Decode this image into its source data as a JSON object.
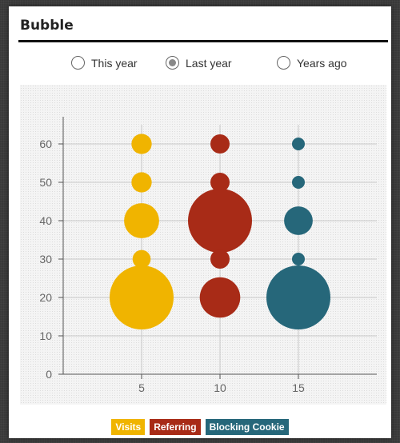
{
  "panel": {
    "title": "Bubble"
  },
  "radios": [
    {
      "label": "This year",
      "checked": false
    },
    {
      "label": "Last year",
      "checked": true
    },
    {
      "label": "Years ago",
      "checked": false
    }
  ],
  "legend": [
    {
      "name": "Visits",
      "color": "#f0b400"
    },
    {
      "name": "Referring",
      "color": "#a82b17"
    },
    {
      "name": "Blocking Cookie",
      "color": "#26677a"
    }
  ],
  "chart_data": {
    "type": "scatter",
    "title": "",
    "xlabel": "",
    "ylabel": "",
    "xlim": [
      0,
      20
    ],
    "ylim": [
      0,
      65
    ],
    "xticks": [
      5,
      10,
      15
    ],
    "yticks": [
      0,
      10,
      20,
      30,
      40,
      50,
      60
    ],
    "grid": true,
    "legend_position": "bottom",
    "series": [
      {
        "name": "Visits",
        "color": "#f0b400",
        "points": [
          {
            "x": 5,
            "y": 60,
            "size": 1
          },
          {
            "x": 5,
            "y": 50,
            "size": 1
          },
          {
            "x": 5,
            "y": 40,
            "size": 3
          },
          {
            "x": 5,
            "y": 30,
            "size": 0.8
          },
          {
            "x": 5,
            "y": 20,
            "size": 10
          }
        ]
      },
      {
        "name": "Referring",
        "color": "#a82b17",
        "points": [
          {
            "x": 10,
            "y": 60,
            "size": 0.9
          },
          {
            "x": 10,
            "y": 50,
            "size": 0.9
          },
          {
            "x": 10,
            "y": 40,
            "size": 10
          },
          {
            "x": 10,
            "y": 30,
            "size": 0.9
          },
          {
            "x": 10,
            "y": 20,
            "size": 4
          }
        ]
      },
      {
        "name": "Blocking Cookie",
        "color": "#26677a",
        "points": [
          {
            "x": 15,
            "y": 60,
            "size": 0.4
          },
          {
            "x": 15,
            "y": 50,
            "size": 0.4
          },
          {
            "x": 15,
            "y": 40,
            "size": 2
          },
          {
            "x": 15,
            "y": 30,
            "size": 0.4
          },
          {
            "x": 15,
            "y": 20,
            "size": 10
          }
        ]
      }
    ]
  }
}
